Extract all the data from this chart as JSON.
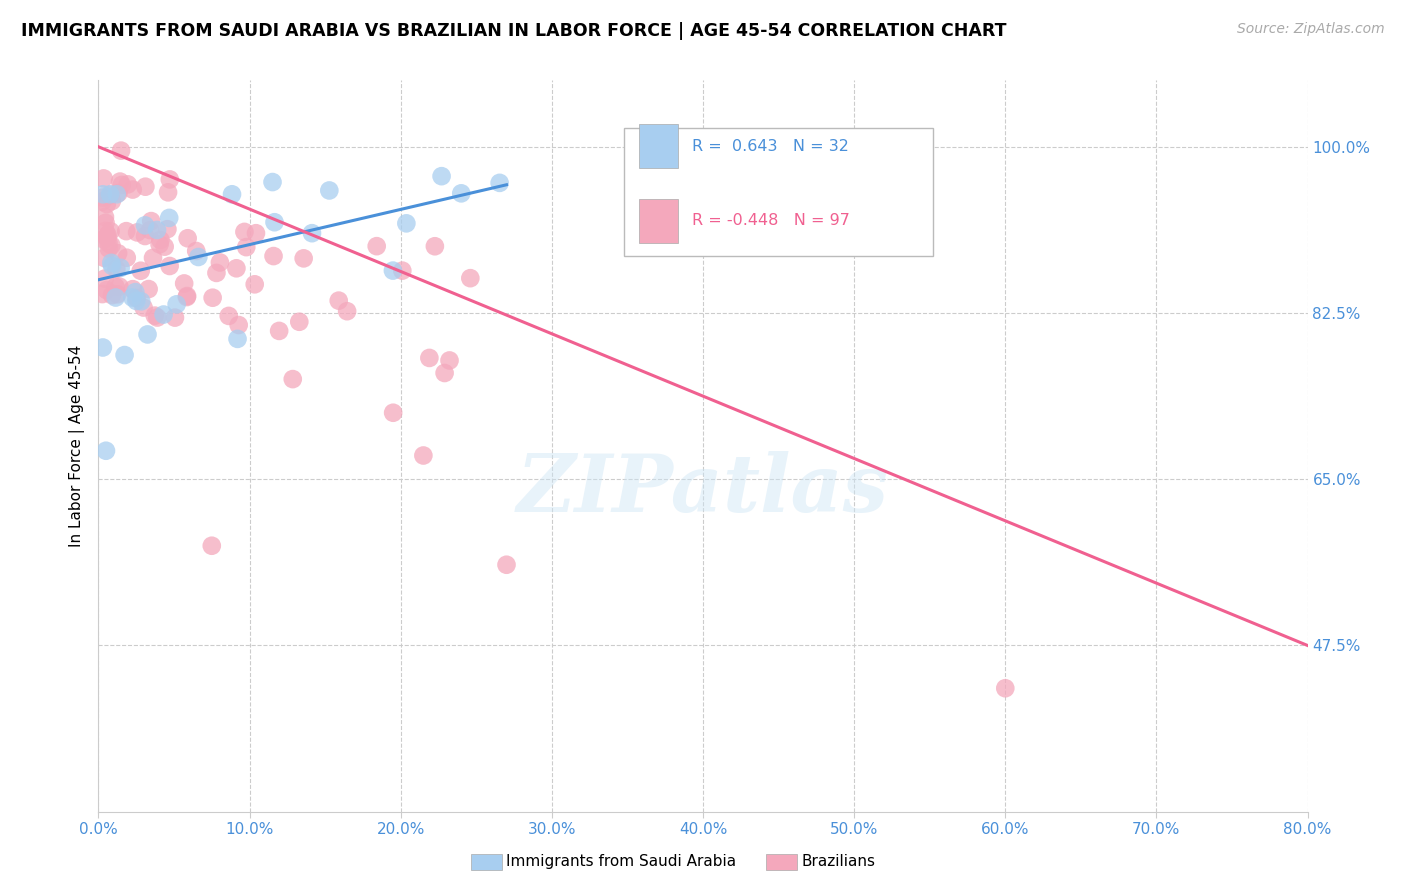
{
  "title": "IMMIGRANTS FROM SAUDI ARABIA VS BRAZILIAN IN LABOR FORCE | AGE 45-54 CORRELATION CHART",
  "source": "Source: ZipAtlas.com",
  "ylabel": "In Labor Force | Age 45-54",
  "xlim": [
    0.0,
    80.0
  ],
  "ylim": [
    30.0,
    107.0
  ],
  "xticks": [
    0.0,
    10.0,
    20.0,
    30.0,
    40.0,
    50.0,
    60.0,
    70.0,
    80.0
  ],
  "yticks": [
    47.5,
    65.0,
    82.5,
    100.0
  ],
  "yticklabels": [
    "47.5%",
    "65.0%",
    "82.5%",
    "100.0%"
  ],
  "saudi_color": "#a8cef0",
  "brazil_color": "#f4a8bc",
  "saudi_R": 0.643,
  "saudi_N": 32,
  "brazil_R": -0.448,
  "brazil_N": 97,
  "saudi_line_color": "#4a90d9",
  "brazil_line_color": "#f06090",
  "watermark": "ZIPatlas",
  "legend_label_saudi": "Immigrants from Saudi Arabia",
  "legend_label_brazil": "Brazilians"
}
